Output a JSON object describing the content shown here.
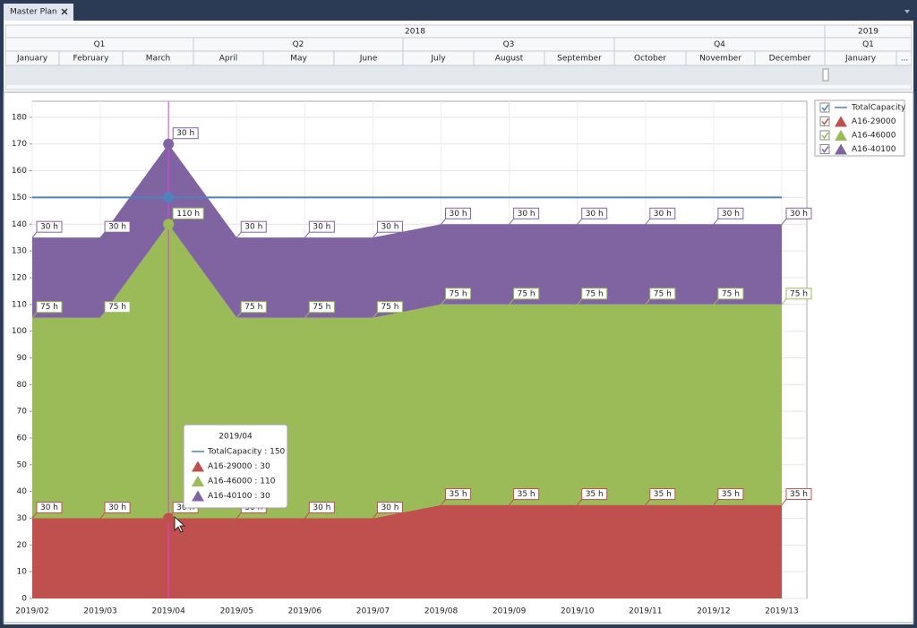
{
  "ui": {
    "tab": "Master Plan",
    "timeline": {
      "years": [
        "2018",
        "2019"
      ],
      "quarters": [
        "Q1",
        "Q2",
        "Q3",
        "Q4",
        "Q1"
      ],
      "months": [
        "January",
        "February",
        "March",
        "April",
        "May",
        "June",
        "July",
        "August",
        "September",
        "October",
        "November",
        "December",
        "January"
      ],
      "more": "..."
    }
  },
  "chart_data": {
    "type": "area",
    "stacked": true,
    "categories": [
      "2019/02",
      "2019/03",
      "2019/04",
      "2019/05",
      "2019/06",
      "2019/07",
      "2019/08",
      "2019/09",
      "2019/10",
      "2019/11",
      "2019/12",
      "2019/13"
    ],
    "ylim": [
      0,
      186
    ],
    "yticks": [
      0,
      10,
      20,
      30,
      40,
      50,
      60,
      70,
      80,
      90,
      100,
      110,
      120,
      130,
      140,
      150,
      160,
      170,
      180
    ],
    "grid": true,
    "legend": "right",
    "series": [
      {
        "name": "TotalCapacity",
        "type": "line",
        "color": "#4f81bd",
        "values": [
          150,
          150,
          150,
          150,
          150,
          150,
          150,
          150,
          150,
          150,
          150,
          150
        ]
      },
      {
        "name": "A16-29000",
        "color": "#c0504d",
        "values": [
          30,
          30,
          30,
          30,
          30,
          30,
          35,
          35,
          35,
          35,
          35,
          35
        ],
        "value_labels": [
          "30 h",
          "30 h",
          "30 h",
          "30 h",
          "30 h",
          "30 h",
          "35 h",
          "35 h",
          "35 h",
          "35 h",
          "35 h",
          "35 h"
        ]
      },
      {
        "name": "A16-46000",
        "color": "#9bbb59",
        "values": [
          75,
          75,
          110,
          75,
          75,
          75,
          75,
          75,
          75,
          75,
          75,
          75
        ],
        "value_labels": [
          "75 h",
          "75 h",
          "110 h",
          "75 h",
          "75 h",
          "75 h",
          "75 h",
          "75 h",
          "75 h",
          "75 h",
          "75 h",
          "75 h"
        ]
      },
      {
        "name": "A16-40100",
        "color": "#8064a2",
        "values": [
          30,
          30,
          30,
          30,
          30,
          30,
          30,
          30,
          30,
          30,
          30,
          30
        ],
        "value_labels": [
          "30 h",
          "30 h",
          "30 h",
          "30 h",
          "30 h",
          "30 h",
          "30 h",
          "30 h",
          "30 h",
          "30 h",
          "30 h",
          "30 h"
        ]
      }
    ],
    "tooltip": {
      "title": "2019/04",
      "items": [
        "TotalCapacity : 150",
        "A16-29000 : 30",
        "A16-46000 : 110",
        "A16-40100 : 30"
      ]
    }
  }
}
